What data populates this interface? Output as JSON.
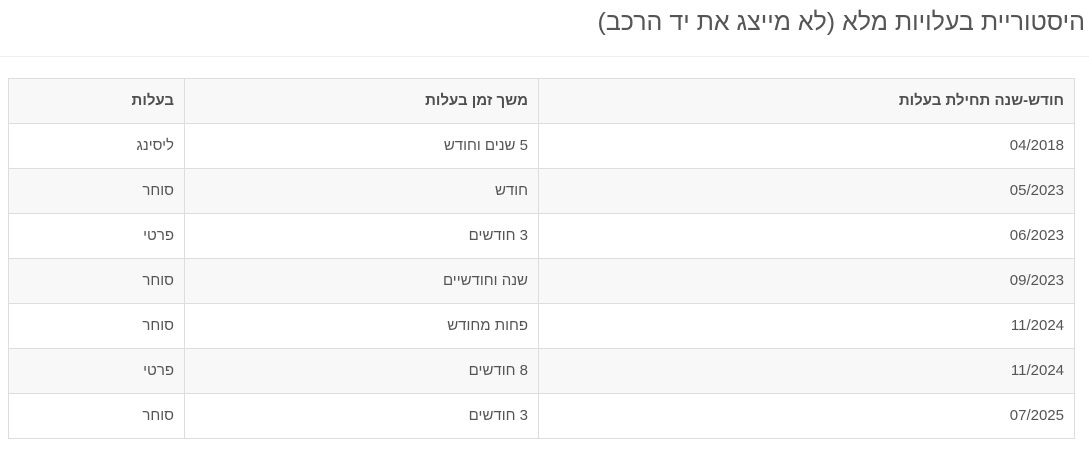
{
  "page": {
    "title": "היסטוריית בעלויות מלא (לא מייצג את יד הרכב)"
  },
  "table": {
    "columns": [
      {
        "key": "start",
        "label": "חודש-שנה תחילת בעלות"
      },
      {
        "key": "duration",
        "label": "משך זמן בעלות"
      },
      {
        "key": "ownership",
        "label": "בעלות"
      }
    ],
    "rows": [
      {
        "start": "04/2018",
        "duration": "5 שנים וחודש",
        "ownership": "ליסינג"
      },
      {
        "start": "05/2023",
        "duration": "חודש",
        "ownership": "סוחר"
      },
      {
        "start": "06/2023",
        "duration": "3 חודשים",
        "ownership": "פרטי"
      },
      {
        "start": "09/2023",
        "duration": "שנה וחודשיים",
        "ownership": "סוחר"
      },
      {
        "start": "11/2024",
        "duration": "פחות מחודש",
        "ownership": "סוחר"
      },
      {
        "start": "11/2024",
        "duration": "8 חודשים",
        "ownership": "פרטי"
      },
      {
        "start": "07/2025",
        "duration": "3 חודשים",
        "ownership": "סוחר"
      }
    ]
  },
  "colors": {
    "title_text": "#555555",
    "cell_text": "#555555",
    "table_border": "#dddddd",
    "stripe_background": "#f8f8f8",
    "divider": "#eeeeee"
  }
}
